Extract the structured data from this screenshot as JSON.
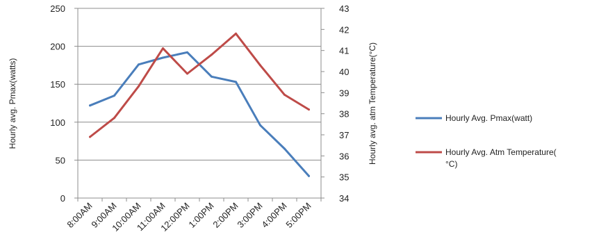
{
  "chart_data": {
    "type": "line",
    "categories": [
      "8:00AM",
      "9:00AM",
      "10:00AM",
      "11:00AM",
      "12:00PM",
      "1:00PM",
      "2:00PM",
      "3:00PM",
      "4:00PM",
      "5:00PM"
    ],
    "series": [
      {
        "name": "Hourly Avg. Pmax(watt)",
        "axis": "left",
        "color": "#4a7ebb",
        "values": [
          122,
          135,
          176,
          185,
          192,
          160,
          153,
          96,
          65,
          29
        ]
      },
      {
        "name": "Hourly Avg. Atm Temperature(°C)",
        "axis": "right",
        "color": "#be4b48",
        "values": [
          36.9,
          37.8,
          39.3,
          41.1,
          39.9,
          40.8,
          41.8,
          40.3,
          38.9,
          38.2
        ]
      }
    ],
    "ylabel_left": "Hourly avg. Pmax(watts)",
    "ylabel_right": "Hourly avg. atm Temperature(°C)",
    "ylim_left": [
      0,
      250
    ],
    "yticks_left": [
      0,
      50,
      100,
      150,
      200,
      250
    ],
    "ylim_right": [
      34,
      43
    ],
    "yticks_right": [
      34,
      35,
      36,
      37,
      38,
      39,
      40,
      41,
      42,
      43
    ],
    "legend": {
      "position": "right",
      "items": [
        {
          "lines": [
            "Hourly Avg. Pmax(watt)"
          ]
        },
        {
          "lines": [
            "Hourly Avg. Atm Temperature(",
            "°C)"
          ]
        }
      ]
    },
    "grid": true
  }
}
